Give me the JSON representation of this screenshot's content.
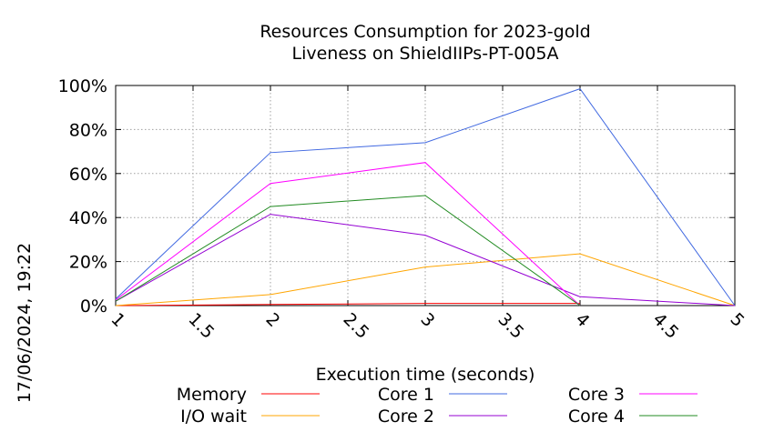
{
  "chart_data": {
    "type": "line",
    "title": [
      "Resources Consumption for 2023-gold",
      "Liveness on ShieldIIPs-PT-005A"
    ],
    "xlabel": "Execution time (seconds)",
    "ylabel": "",
    "side_label": "17/06/2024, 19:22",
    "xlim": [
      1,
      5
    ],
    "ylim": [
      0,
      100
    ],
    "x_ticks": [
      1,
      1.5,
      2,
      2.5,
      3,
      3.5,
      4,
      4.5,
      5
    ],
    "x_tick_labels": [
      "1",
      "1.5",
      "2",
      "2.5",
      "3",
      "3.5",
      "4",
      "4.5",
      "5"
    ],
    "y_ticks": [
      0,
      20,
      40,
      60,
      80,
      100
    ],
    "y_tick_labels": [
      "0%",
      "20%",
      "40%",
      "60%",
      "80%",
      "100%"
    ],
    "grid": true,
    "legend_position": "bottom",
    "series": [
      {
        "name": "Memory",
        "color": "#ff0000",
        "x": [
          1,
          2,
          3,
          4
        ],
        "y": [
          0,
          0.5,
          1,
          1
        ]
      },
      {
        "name": "I/O wait",
        "color": "#ffa500",
        "x": [
          1,
          2,
          3,
          4,
          5
        ],
        "y": [
          0,
          5,
          17.5,
          23.5,
          0
        ]
      },
      {
        "name": "Core 1",
        "color": "#4169e1",
        "x": [
          1,
          2,
          3,
          4,
          5
        ],
        "y": [
          3,
          69.5,
          74,
          98.5,
          0
        ]
      },
      {
        "name": "Core 2",
        "color": "#9400d3",
        "x": [
          1,
          2,
          3,
          4,
          5
        ],
        "y": [
          2,
          41.5,
          32,
          4,
          0
        ]
      },
      {
        "name": "Core 3",
        "color": "#ff00ff",
        "x": [
          1,
          2,
          3,
          4
        ],
        "y": [
          2.5,
          55.5,
          65,
          0
        ]
      },
      {
        "name": "Core 4",
        "color": "#228b22",
        "x": [
          1,
          2,
          3,
          4
        ],
        "y": [
          2,
          45,
          50,
          0
        ]
      }
    ]
  }
}
